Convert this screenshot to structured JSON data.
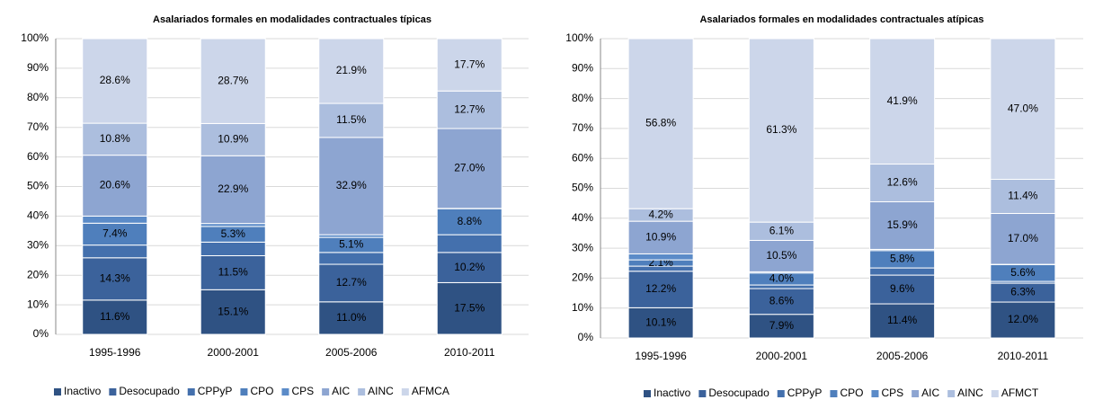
{
  "chart_data": [
    {
      "type": "stacked_bar",
      "title": "Asalariados formales en modalidades contractuales típicas",
      "categories": [
        "1995-1996",
        "2000-2001",
        "2005-2006",
        "2010-2011"
      ],
      "ylim": [
        0,
        100
      ],
      "yticks": [
        {
          "value": 0,
          "label": "0%"
        },
        {
          "value": 10,
          "label": "10%"
        },
        {
          "value": 20,
          "label": "20%"
        },
        {
          "value": 30,
          "label": "30%"
        },
        {
          "value": 40,
          "label": "40%"
        },
        {
          "value": 50,
          "label": "50%"
        },
        {
          "value": 60,
          "label": "60%"
        },
        {
          "value": 70,
          "label": "70%"
        },
        {
          "value": 80,
          "label": "80%"
        },
        {
          "value": 90,
          "label": "90%"
        },
        {
          "value": 100,
          "label": "100%"
        }
      ],
      "grid": true,
      "legend": "bottom",
      "series": [
        {
          "name": "Inactivo",
          "color": "#2f5283",
          "values": [
            11.6,
            15.1,
            11.0,
            17.5
          ],
          "value_labels": [
            "11.6%",
            "15.1%",
            "11.0%",
            "17.5%"
          ]
        },
        {
          "name": "Desocupado",
          "color": "#3b629b",
          "values": [
            14.3,
            11.5,
            12.7,
            10.2
          ],
          "value_labels": [
            "14.3%",
            "11.5%",
            "12.7%",
            "10.2%"
          ]
        },
        {
          "name": "CPPyP",
          "color": "#4470ad",
          "values": [
            4.3,
            4.6,
            4.0,
            6.0
          ],
          "value_labels": [
            null,
            null,
            null,
            null
          ]
        },
        {
          "name": "CPO",
          "color": "#4f7fbc",
          "values": [
            7.4,
            5.3,
            5.1,
            8.8
          ],
          "value_labels": [
            "7.4%",
            "5.3%",
            "5.1%",
            "8.8%"
          ]
        },
        {
          "name": "CPS",
          "color": "#5b8bc8",
          "values": [
            2.4,
            1.0,
            0.9,
            0.1
          ],
          "value_labels": [
            null,
            null,
            null,
            null
          ]
        },
        {
          "name": "AIC",
          "color": "#8da5d1",
          "values": [
            20.6,
            22.9,
            32.9,
            27.0
          ],
          "value_labels": [
            "20.6%",
            "22.9%",
            "32.9%",
            "27.0%"
          ]
        },
        {
          "name": "AINC",
          "color": "#acbede",
          "values": [
            10.8,
            10.9,
            11.5,
            12.7
          ],
          "value_labels": [
            "10.8%",
            "10.9%",
            "11.5%",
            "12.7%"
          ]
        },
        {
          "name": "AFMCA",
          "color": "#ccd6ea",
          "values": [
            28.6,
            28.7,
            21.9,
            17.7
          ],
          "value_labels": [
            "28.6%",
            "28.7%",
            "21.9%",
            "17.7%"
          ]
        }
      ]
    },
    {
      "type": "stacked_bar",
      "title": "Asalariados formales en modalidades contractuales atípicas",
      "categories": [
        "1995-1996",
        "2000-2001",
        "2005-2006",
        "2010-2011"
      ],
      "ylim": [
        0,
        100
      ],
      "yticks": [
        {
          "value": 0,
          "label": "0%"
        },
        {
          "value": 10,
          "label": "10%"
        },
        {
          "value": 20,
          "label": "20%"
        },
        {
          "value": 30,
          "label": "30%"
        },
        {
          "value": 40,
          "label": "40%"
        },
        {
          "value": 50,
          "label": "50%"
        },
        {
          "value": 60,
          "label": "60%"
        },
        {
          "value": 70,
          "label": "70%"
        },
        {
          "value": 80,
          "label": "80%"
        },
        {
          "value": 90,
          "label": "90%"
        },
        {
          "value": 100,
          "label": "100%"
        }
      ],
      "grid": true,
      "legend": "bottom",
      "series": [
        {
          "name": "Inactivo",
          "color": "#2f5283",
          "values": [
            10.1,
            7.9,
            11.4,
            12.0
          ],
          "value_labels": [
            "10.1%",
            "7.9%",
            "11.4%",
            "12.0%"
          ]
        },
        {
          "name": "Desocupado",
          "color": "#3b629b",
          "values": [
            12.2,
            8.6,
            9.6,
            6.3
          ],
          "value_labels": [
            "12.2%",
            "8.6%",
            "9.6%",
            "6.3%"
          ]
        },
        {
          "name": "CPPyP",
          "color": "#4470ad",
          "values": [
            1.7,
            1.2,
            2.4,
            0.6
          ],
          "value_labels": [
            null,
            null,
            null,
            null
          ]
        },
        {
          "name": "CPO",
          "color": "#4f7fbc",
          "values": [
            2.1,
            4.0,
            5.8,
            5.6
          ],
          "value_labels": [
            "2.1%",
            "4.0%",
            "5.8%",
            "5.6%"
          ]
        },
        {
          "name": "CPS",
          "color": "#5b8bc8",
          "values": [
            2.0,
            0.4,
            0.4,
            0.1
          ],
          "value_labels": [
            null,
            null,
            null,
            null
          ]
        },
        {
          "name": "AIC",
          "color": "#8da5d1",
          "values": [
            10.9,
            10.5,
            15.9,
            17.0
          ],
          "value_labels": [
            "10.9%",
            "10.5%",
            "15.9%",
            "17.0%"
          ]
        },
        {
          "name": "AINC",
          "color": "#acbede",
          "values": [
            4.2,
            6.1,
            12.6,
            11.4
          ],
          "value_labels": [
            "4.2%",
            "6.1%",
            "12.6%",
            "11.4%"
          ]
        },
        {
          "name": "AFMCT",
          "color": "#ccd6ea",
          "values": [
            56.8,
            61.3,
            41.9,
            47.0
          ],
          "value_labels": [
            "56.8%",
            "61.3%",
            "41.9%",
            "47.0%"
          ]
        }
      ]
    }
  ]
}
